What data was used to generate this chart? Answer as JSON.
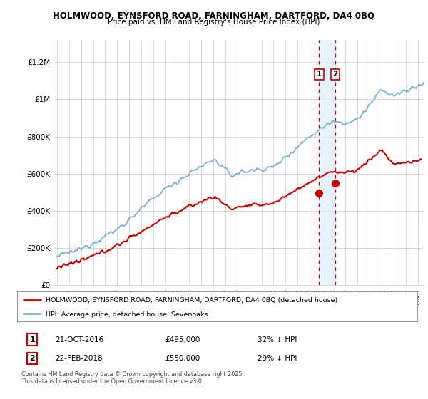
{
  "title1": "HOLMWOOD, EYNSFORD ROAD, FARNINGHAM, DARTFORD, DA4 0BQ",
  "title2": "Price paid vs. HM Land Registry's House Price Index (HPI)",
  "ylabel_ticks": [
    "£0",
    "£200K",
    "£400K",
    "£600K",
    "£800K",
    "£1M",
    "£1.2M"
  ],
  "ytick_vals": [
    0,
    200000,
    400000,
    600000,
    800000,
    1000000,
    1200000
  ],
  "ylim": [
    0,
    1320000
  ],
  "xlim_start": 1994.7,
  "xlim_end": 2025.5,
  "hpi_color": "#7ab3d4",
  "hpi_shade_color": "#ddeeff",
  "price_color": "#cc0000",
  "marker1_date": 2016.8,
  "marker1_price": 495000,
  "marker2_date": 2018.15,
  "marker2_price": 550000,
  "legend_label_red": "HOLMWOOD, EYNSFORD ROAD, FARNINGHAM, DARTFORD, DA4 0BQ (detached house)",
  "legend_label_blue": "HPI: Average price, detached house, Sevenoaks",
  "ann1_text": "21-OCT-2016",
  "ann1_price": "£495,000",
  "ann1_hpi": "32% ↓ HPI",
  "ann2_text": "22-FEB-2018",
  "ann2_price": "£550,000",
  "ann2_hpi": "29% ↓ HPI",
  "footer": "Contains HM Land Registry data © Crown copyright and database right 2025.\nThis data is licensed under the Open Government Licence v3.0.",
  "background_color": "#ffffff",
  "grid_color": "#cccccc"
}
